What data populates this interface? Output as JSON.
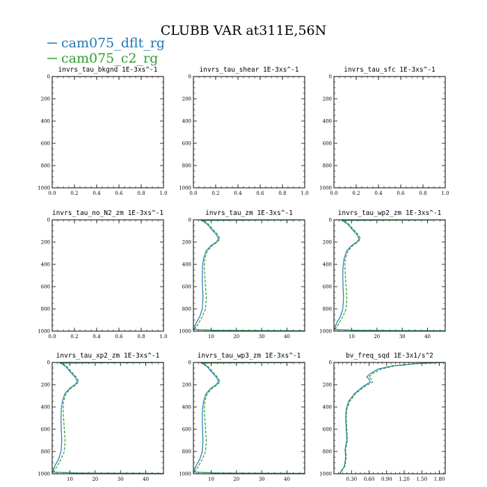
{
  "title": "CLUBB VAR at311E,56N",
  "legend": [
    {
      "label": "cam075_dflt_rg",
      "color": "#1f77b4"
    },
    {
      "label": "cam075_c2_rg",
      "color": "#2ca02c"
    }
  ],
  "chart_data": [
    {
      "type": "line",
      "title": "invrs_tau_bkgnd",
      "units": "1E-3xs^-1",
      "xlim": [
        0,
        1.0
      ],
      "ylim": [
        1000,
        0
      ],
      "xticks": [
        0.0,
        0.2,
        0.4,
        0.6,
        0.8,
        1.0
      ],
      "xtick_labels": [
        "0.0",
        "0.2",
        "0.4",
        "0.6",
        "0.8",
        "1.0"
      ],
      "yticks": [
        0,
        200,
        400,
        600,
        800,
        1000
      ],
      "ytick_labels": [
        "0",
        "200",
        "400",
        "600",
        "800",
        "1000"
      ],
      "series": []
    },
    {
      "type": "line",
      "title": "invrs_tau_shear",
      "units": "1E-3xs^-1",
      "xlim": [
        0,
        1.0
      ],
      "ylim": [
        1000,
        0
      ],
      "xticks": [
        0.0,
        0.2,
        0.4,
        0.6,
        0.8,
        1.0
      ],
      "xtick_labels": [
        "0.0",
        "0.2",
        "0.4",
        "0.6",
        "0.8",
        "1.0"
      ],
      "yticks": [
        0,
        200,
        400,
        600,
        800,
        1000
      ],
      "ytick_labels": [
        "0",
        "200",
        "400",
        "600",
        "800",
        "1000"
      ],
      "series": []
    },
    {
      "type": "line",
      "title": "invrs_tau_sfc",
      "units": "1E-3xs^-1",
      "xlim": [
        0,
        1.0
      ],
      "ylim": [
        1000,
        0
      ],
      "xticks": [
        0.0,
        0.2,
        0.4,
        0.6,
        0.8,
        1.0
      ],
      "xtick_labels": [
        "0.0",
        "0.2",
        "0.4",
        "0.6",
        "0.8",
        "1.0"
      ],
      "yticks": [
        0,
        200,
        400,
        600,
        800,
        1000
      ],
      "ytick_labels": [
        "0",
        "200",
        "400",
        "600",
        "800",
        "1000"
      ],
      "series": []
    },
    {
      "type": "line",
      "title": "invrs_tau_no_N2_zm",
      "units": "1E-3xs^-1",
      "xlim": [
        0,
        1.0
      ],
      "ylim": [
        1000,
        0
      ],
      "xticks": [
        0.0,
        0.2,
        0.4,
        0.6,
        0.8,
        1.0
      ],
      "xtick_labels": [
        "0.0",
        "0.2",
        "0.4",
        "0.6",
        "0.8",
        "1.0"
      ],
      "yticks": [
        0,
        200,
        400,
        600,
        800,
        1000
      ],
      "ytick_labels": [
        "0",
        "200",
        "400",
        "600",
        "800",
        "1000"
      ],
      "series": []
    },
    {
      "type": "line",
      "title": "invrs_tau_zm",
      "units": "1E-3xs^-1",
      "xlim": [
        3,
        47
      ],
      "ylim": [
        1000,
        0
      ],
      "xticks": [
        10,
        20,
        30,
        40
      ],
      "xtick_labels": [
        "10",
        "20",
        "30",
        "40"
      ],
      "yticks": [
        0,
        200,
        400,
        600,
        800,
        1000
      ],
      "ytick_labels": [
        "0",
        "200",
        "400",
        "600",
        "800",
        "1000"
      ],
      "series": [
        {
          "name": "cam075_dflt_rg",
          "color": "#1f77b4",
          "x": [
            47,
            6,
            7,
            8.5,
            10,
            12,
            13,
            12,
            10,
            8,
            7,
            6.6,
            6.5,
            6.6,
            6.8,
            6.5,
            5.5,
            4,
            3.2,
            12,
            47
          ],
          "y": [
            0,
            5,
            15,
            40,
            80,
            130,
            170,
            200,
            230,
            280,
            350,
            420,
            500,
            600,
            700,
            800,
            870,
            930,
            985,
            993,
            997
          ]
        },
        {
          "name": "cam075_c2_rg",
          "color": "#2ca02c",
          "x": [
            47,
            6.5,
            7.5,
            9,
            10.5,
            12.5,
            13.5,
            12.5,
            10.5,
            8.5,
            7.5,
            7.3,
            7.5,
            7.8,
            8.1,
            7.8,
            6.5,
            5,
            3.5,
            12,
            47
          ],
          "y": [
            0,
            5,
            15,
            40,
            80,
            130,
            170,
            200,
            230,
            280,
            350,
            420,
            500,
            600,
            700,
            800,
            870,
            930,
            985,
            993,
            997
          ]
        }
      ]
    },
    {
      "type": "line",
      "title": "invrs_tau_wp2_zm",
      "units": "1E-3xs^-1",
      "xlim": [
        3,
        47
      ],
      "ylim": [
        1000,
        0
      ],
      "xticks": [
        10,
        20,
        30,
        40
      ],
      "xtick_labels": [
        "10",
        "20",
        "30",
        "40"
      ],
      "yticks": [
        0,
        200,
        400,
        600,
        800,
        1000
      ],
      "ytick_labels": [
        "0",
        "200",
        "400",
        "600",
        "800",
        "1000"
      ],
      "series": [
        {
          "name": "cam075_dflt_rg",
          "color": "#1f77b4",
          "x": [
            47,
            6,
            7,
            8.5,
            10,
            12,
            13,
            12,
            10,
            8,
            7,
            6.6,
            6.5,
            6.6,
            6.8,
            6.5,
            5.5,
            4,
            3.2,
            12,
            47
          ],
          "y": [
            0,
            5,
            15,
            40,
            80,
            130,
            170,
            200,
            230,
            280,
            350,
            420,
            500,
            600,
            700,
            800,
            870,
            930,
            985,
            993,
            997
          ]
        },
        {
          "name": "cam075_c2_rg",
          "color": "#2ca02c",
          "x": [
            47,
            6.5,
            7.5,
            9,
            10.5,
            12.5,
            13.5,
            12.5,
            10.5,
            8.5,
            7.5,
            7.3,
            7.5,
            7.8,
            8.1,
            7.8,
            6.5,
            5,
            3.5,
            12,
            47
          ],
          "y": [
            0,
            5,
            15,
            40,
            80,
            130,
            170,
            200,
            230,
            280,
            350,
            420,
            500,
            600,
            700,
            800,
            870,
            930,
            985,
            993,
            997
          ]
        }
      ]
    },
    {
      "type": "line",
      "title": "invrs_tau_xp2_zm",
      "units": "1E-3xs^-1",
      "xlim": [
        3,
        47
      ],
      "ylim": [
        1000,
        0
      ],
      "xticks": [
        10,
        20,
        30,
        40
      ],
      "xtick_labels": [
        "10",
        "20",
        "30",
        "40"
      ],
      "yticks": [
        0,
        200,
        400,
        600,
        800,
        1000
      ],
      "ytick_labels": [
        "0",
        "200",
        "400",
        "600",
        "800",
        "1000"
      ],
      "series": [
        {
          "name": "cam075_dflt_rg",
          "color": "#1f77b4",
          "x": [
            47,
            6,
            7,
            8.5,
            10,
            12,
            13,
            12,
            10,
            8,
            7,
            6.6,
            6.5,
            6.6,
            6.8,
            6.5,
            5.5,
            4,
            3.2,
            12,
            47
          ],
          "y": [
            0,
            5,
            15,
            40,
            80,
            130,
            170,
            200,
            230,
            280,
            350,
            420,
            500,
            600,
            700,
            800,
            870,
            930,
            985,
            993,
            997
          ]
        },
        {
          "name": "cam075_c2_rg",
          "color": "#2ca02c",
          "x": [
            47,
            6.5,
            7.5,
            9,
            10.5,
            12.5,
            13.5,
            12.5,
            10.5,
            8.5,
            7.5,
            7.3,
            7.5,
            7.8,
            8.1,
            7.8,
            6.5,
            5,
            3.5,
            12,
            47
          ],
          "y": [
            0,
            5,
            15,
            40,
            80,
            130,
            170,
            200,
            230,
            280,
            350,
            420,
            500,
            600,
            700,
            800,
            870,
            930,
            985,
            993,
            997
          ]
        }
      ]
    },
    {
      "type": "line",
      "title": "invrs_tau_wp3_zm",
      "units": "1E-3xs^-1",
      "xlim": [
        3,
        47
      ],
      "ylim": [
        1000,
        0
      ],
      "xticks": [
        10,
        20,
        30,
        40
      ],
      "xtick_labels": [
        "10",
        "20",
        "30",
        "40"
      ],
      "yticks": [
        0,
        200,
        400,
        600,
        800,
        1000
      ],
      "ytick_labels": [
        "0",
        "200",
        "400",
        "600",
        "800",
        "1000"
      ],
      "series": [
        {
          "name": "cam075_dflt_rg",
          "color": "#1f77b4",
          "x": [
            47,
            6,
            7,
            8.5,
            10,
            12,
            13,
            12,
            10,
            8,
            7,
            6.6,
            6.5,
            6.6,
            6.8,
            6.5,
            5.5,
            4,
            3.2,
            12,
            47
          ],
          "y": [
            0,
            5,
            15,
            40,
            80,
            130,
            170,
            200,
            230,
            280,
            350,
            420,
            500,
            600,
            700,
            800,
            870,
            930,
            985,
            993,
            997
          ]
        },
        {
          "name": "cam075_c2_rg",
          "color": "#2ca02c",
          "x": [
            47,
            6.5,
            7.5,
            9,
            10.5,
            12.5,
            13.5,
            12.5,
            10.5,
            8.5,
            7.5,
            7.3,
            7.5,
            7.8,
            8.1,
            7.8,
            6.5,
            5,
            3.5,
            12,
            47
          ],
          "y": [
            0,
            5,
            15,
            40,
            80,
            130,
            170,
            200,
            230,
            280,
            350,
            420,
            500,
            600,
            700,
            800,
            870,
            930,
            985,
            993,
            997
          ]
        }
      ]
    },
    {
      "type": "line",
      "title": "bv_freq_sqd",
      "units": "1E-3x1/s^2",
      "xlim": [
        0,
        1.9
      ],
      "ylim": [
        1000,
        0
      ],
      "xticks": [
        0.3,
        0.6,
        0.9,
        1.2,
        1.5,
        1.8
      ],
      "xtick_labels": [
        "0.30",
        "0.60",
        "0.90",
        "1.20",
        "1.50",
        "1.80"
      ],
      "yticks": [
        0,
        200,
        400,
        600,
        800,
        1000
      ],
      "ytick_labels": [
        "0",
        "200",
        "400",
        "600",
        "800",
        "1000"
      ],
      "series": [
        {
          "name": "cam075_dflt_rg",
          "color": "#1f77b4",
          "x": [
            1.88,
            1.4,
            1.0,
            0.75,
            0.62,
            0.56,
            0.6,
            0.62,
            0.5,
            0.35,
            0.25,
            0.21,
            0.2,
            0.21,
            0.22,
            0.19,
            0.2,
            0.18,
            0.1
          ],
          "y": [
            0,
            10,
            30,
            60,
            100,
            130,
            150,
            175,
            215,
            280,
            350,
            420,
            500,
            600,
            700,
            780,
            850,
            930,
            995
          ]
        },
        {
          "name": "cam075_c2_rg",
          "color": "#2ca02c",
          "x": [
            1.88,
            1.45,
            1.05,
            0.8,
            0.66,
            0.6,
            0.64,
            0.66,
            0.53,
            0.37,
            0.27,
            0.22,
            0.21,
            0.22,
            0.23,
            0.2,
            0.21,
            0.19,
            0.11
          ],
          "y": [
            0,
            10,
            30,
            60,
            100,
            130,
            150,
            175,
            215,
            280,
            350,
            420,
            500,
            600,
            700,
            780,
            850,
            930,
            995
          ]
        }
      ]
    }
  ]
}
